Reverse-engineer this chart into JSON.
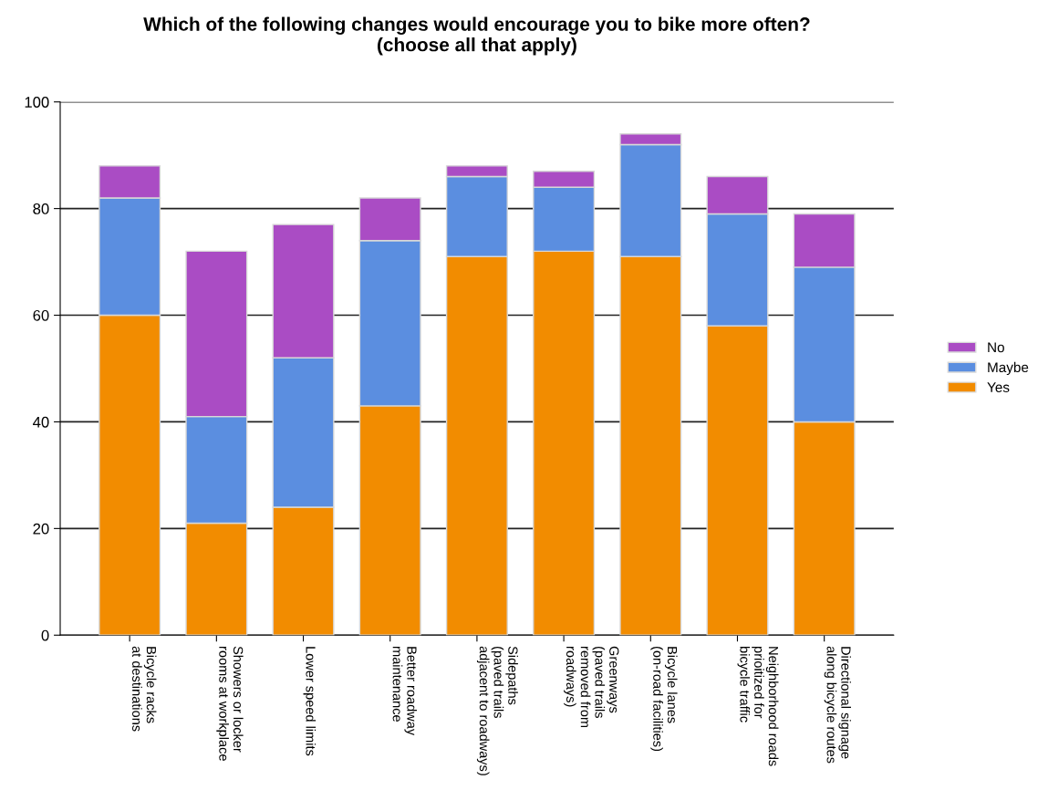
{
  "chart_data": {
    "type": "bar",
    "title": "Which of the following changes would encourage you to bike more often?\n(choose all that apply)",
    "categories": [
      "Bicycle racks\nat destinations",
      "Showers or locker\nrooms at workplace",
      "Lower speed limits",
      "Better roadway\nmaintenance",
      "Sidepaths\n(paved trails\nadjacent to roadways)",
      "Greenways\n(paved trails\nremoved from\nroadways)",
      "Bicycle lanes\n(on-road facilities)",
      "Neighborhood roads\nprioitized for\nbicycle traffic",
      "Directional signage\nalong bicycle routes"
    ],
    "series": [
      {
        "name": "Yes",
        "color": "#f28c00",
        "values": [
          60,
          21,
          24,
          43,
          71,
          72,
          71,
          58,
          40
        ]
      },
      {
        "name": "Maybe",
        "color": "#5b8ee0",
        "values": [
          22,
          20,
          28,
          31,
          15,
          12,
          21,
          21,
          29
        ]
      },
      {
        "name": "No",
        "color": "#aa4cc4",
        "values": [
          6,
          31,
          25,
          8,
          2,
          3,
          2,
          7,
          10
        ]
      }
    ],
    "stacked": true,
    "ylim": [
      0,
      100
    ],
    "yticks": [
      0,
      20,
      40,
      60,
      80,
      100
    ],
    "grid": "y",
    "legend": "right"
  }
}
